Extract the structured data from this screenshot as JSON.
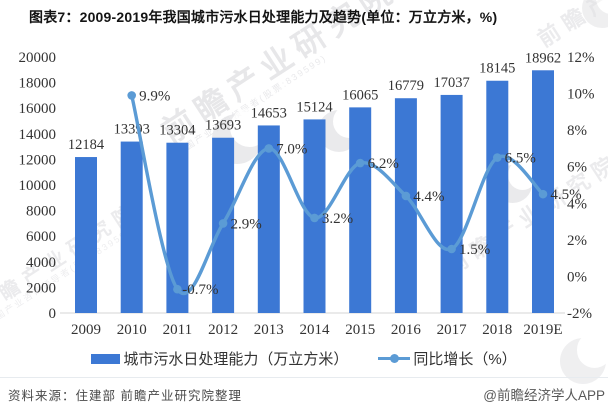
{
  "page": {
    "title": "图表7：2009-2019年我国城市污水日处理能力及趋势(单位：万立方米，%)"
  },
  "chart_data": {
    "type": "bar+line",
    "categories": [
      "2009",
      "2010",
      "2011",
      "2012",
      "2013",
      "2014",
      "2015",
      "2016",
      "2017",
      "2018",
      "2019E"
    ],
    "series": [
      {
        "name": "城市污水日处理能力（万立方米）",
        "type": "bar",
        "axis": "left",
        "color": "#3C78D4",
        "values": [
          12184,
          13393,
          13304,
          13693,
          14653,
          15124,
          16065,
          16779,
          17037,
          18145,
          18962
        ],
        "labels": [
          "12184",
          "13393",
          "13304",
          "13693",
          "14653",
          "15124",
          "16065",
          "16779",
          "17037",
          "18145",
          "18962"
        ]
      },
      {
        "name": "同比增长（%）",
        "type": "line",
        "axis": "right",
        "color": "#5B9BD5",
        "values": [
          null,
          9.9,
          -0.7,
          2.9,
          7.0,
          3.2,
          6.2,
          4.4,
          1.5,
          6.5,
          4.5
        ],
        "labels": [
          null,
          "9.9%",
          "-0.7%",
          "2.9%",
          "7.0%",
          "3.2%",
          "6.2%",
          "4.4%",
          "1.5%",
          "6.5%",
          "4.5%"
        ]
      }
    ],
    "left_axis": {
      "min": 0,
      "max": 20000,
      "step": 2000,
      "ticks": [
        "20000",
        "18000",
        "16000",
        "14000",
        "12000",
        "10000",
        "8000",
        "6000",
        "4000",
        "2000",
        "0"
      ]
    },
    "right_axis": {
      "min": -2,
      "max": 12,
      "step": 2,
      "ticks": [
        "12%",
        "10%",
        "8%",
        "6%",
        "4%",
        "2%",
        "0%",
        "-2%"
      ]
    },
    "legend_position": "bottom",
    "grid": false,
    "text_color": "#333333",
    "axis_line_color": "#d6d6d6"
  },
  "legend": {
    "bar_label": "城市污水日处理能力（万立方米）",
    "line_label": "同比增长（%）"
  },
  "footer": {
    "source": "资料来源：住建部 前瞻产业研究院整理",
    "brand": "@前瞻经济学人APP"
  },
  "watermark": {
    "text": "前瞻产业研究院",
    "subtext": "中国产业咨询领导者(股票:839599)"
  }
}
